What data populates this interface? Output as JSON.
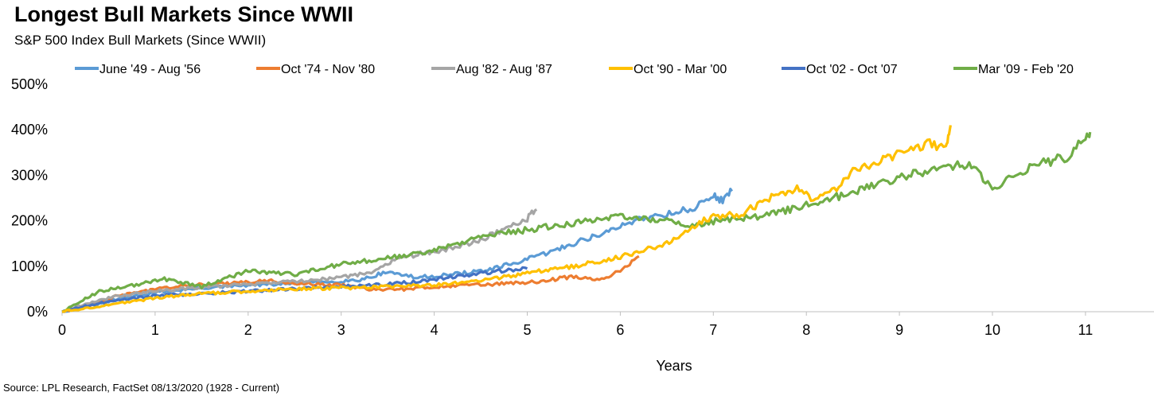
{
  "chart_data": {
    "type": "line",
    "title": "Longest Bull Markets Since WWII",
    "subtitle": "S&P 500 Index Bull Markets (Since WWII)",
    "xlabel": "Years",
    "ylabel": "",
    "source": "Source: LPL Research, FactSet 08/13/2020 (1928 - Current)",
    "xlim": [
      0,
      11.7
    ],
    "ylim": [
      0,
      500
    ],
    "x_ticks": [
      0,
      1,
      2,
      3,
      4,
      5,
      6,
      7,
      8,
      9,
      10,
      11
    ],
    "x_tick_labels": [
      "0",
      "1",
      "2",
      "3",
      "4",
      "5",
      "6",
      "7",
      "8",
      "9",
      "10",
      "11"
    ],
    "y_ticks": [
      0,
      100,
      200,
      300,
      400,
      500
    ],
    "y_tick_labels": [
      "0%",
      "100%",
      "200%",
      "300%",
      "400%",
      "500%"
    ],
    "grid": false,
    "legend_position": "top",
    "series": [
      {
        "name": "June '49 - Aug '56",
        "color": "#5B9BD5",
        "points": [
          [
            0,
            0
          ],
          [
            0.3,
            12
          ],
          [
            0.6,
            28
          ],
          [
            1,
            42
          ],
          [
            1.5,
            52
          ],
          [
            2,
            58
          ],
          [
            2.5,
            62
          ],
          [
            2.9,
            66
          ],
          [
            3.2,
            70
          ],
          [
            3.5,
            88
          ],
          [
            3.8,
            75
          ],
          [
            4.2,
            82
          ],
          [
            4.6,
            92
          ],
          [
            5,
            115
          ],
          [
            5.3,
            135
          ],
          [
            5.6,
            158
          ],
          [
            5.9,
            178
          ],
          [
            6.2,
            205
          ],
          [
            6.5,
            215
          ],
          [
            6.8,
            228
          ],
          [
            7,
            255
          ],
          [
            7.1,
            245
          ],
          [
            7.2,
            265
          ]
        ]
      },
      {
        "name": "Oct '74 - Nov '80",
        "color": "#ED7D31",
        "points": [
          [
            0,
            0
          ],
          [
            0.3,
            15
          ],
          [
            0.6,
            35
          ],
          [
            1,
            50
          ],
          [
            1.4,
            58
          ],
          [
            1.8,
            62
          ],
          [
            2.2,
            68
          ],
          [
            2.6,
            62
          ],
          [
            3,
            58
          ],
          [
            3.3,
            50
          ],
          [
            3.6,
            48
          ],
          [
            4,
            55
          ],
          [
            4.4,
            58
          ],
          [
            4.8,
            62
          ],
          [
            5.2,
            68
          ],
          [
            5.5,
            78
          ],
          [
            5.8,
            70
          ],
          [
            6,
            90
          ],
          [
            6.2,
            122
          ]
        ]
      },
      {
        "name": "Aug '82 - Aug '87",
        "color": "#A5A5A5",
        "points": [
          [
            0,
            0
          ],
          [
            0.3,
            20
          ],
          [
            0.6,
            35
          ],
          [
            1,
            45
          ],
          [
            1.4,
            52
          ],
          [
            1.8,
            58
          ],
          [
            2.2,
            62
          ],
          [
            2.6,
            68
          ],
          [
            3,
            75
          ],
          [
            3.3,
            85
          ],
          [
            3.6,
            115
          ],
          [
            3.9,
            130
          ],
          [
            4.2,
            140
          ],
          [
            4.5,
            158
          ],
          [
            4.8,
            185
          ],
          [
            5,
            205
          ],
          [
            5.1,
            225
          ]
        ]
      },
      {
        "name": "Oct '90 - Mar '00",
        "color": "#FFC000",
        "points": [
          [
            0,
            0
          ],
          [
            0.5,
            15
          ],
          [
            1,
            30
          ],
          [
            1.5,
            40
          ],
          [
            2,
            45
          ],
          [
            2.5,
            50
          ],
          [
            3,
            52
          ],
          [
            3.5,
            55
          ],
          [
            4,
            58
          ],
          [
            4.5,
            68
          ],
          [
            5,
            85
          ],
          [
            5.5,
            100
          ],
          [
            6,
            120
          ],
          [
            6.4,
            145
          ],
          [
            6.6,
            158
          ],
          [
            6.8,
            190
          ],
          [
            7,
            210
          ],
          [
            7.3,
            215
          ],
          [
            7.6,
            250
          ],
          [
            7.9,
            270
          ],
          [
            8.1,
            245
          ],
          [
            8.3,
            265
          ],
          [
            8.5,
            310
          ],
          [
            8.8,
            335
          ],
          [
            9.1,
            350
          ],
          [
            9.3,
            370
          ],
          [
            9.5,
            355
          ],
          [
            9.55,
            410
          ]
        ]
      },
      {
        "name": "Oct '02 - Oct '07",
        "color": "#4472C4",
        "points": [
          [
            0,
            0
          ],
          [
            0.3,
            15
          ],
          [
            0.6,
            25
          ],
          [
            1,
            35
          ],
          [
            1.5,
            40
          ],
          [
            2,
            45
          ],
          [
            2.5,
            50
          ],
          [
            3,
            55
          ],
          [
            3.5,
            60
          ],
          [
            4,
            70
          ],
          [
            4.5,
            85
          ],
          [
            5,
            95
          ]
        ]
      },
      {
        "name": "Mar '09 - Feb '20",
        "color": "#70AD47",
        "points": [
          [
            0,
            0
          ],
          [
            0.4,
            45
          ],
          [
            0.8,
            60
          ],
          [
            1.1,
            72
          ],
          [
            1.5,
            55
          ],
          [
            2,
            90
          ],
          [
            2.5,
            82
          ],
          [
            3,
            105
          ],
          [
            3.5,
            118
          ],
          [
            4,
            135
          ],
          [
            4.5,
            165
          ],
          [
            5,
            180
          ],
          [
            5.5,
            195
          ],
          [
            6,
            208
          ],
          [
            6.5,
            200
          ],
          [
            6.8,
            190
          ],
          [
            7.2,
            205
          ],
          [
            7.6,
            212
          ],
          [
            8,
            235
          ],
          [
            8.5,
            262
          ],
          [
            9,
            295
          ],
          [
            9.3,
            310
          ],
          [
            9.6,
            322
          ],
          [
            9.8,
            320
          ],
          [
            10,
            265
          ],
          [
            10.2,
            295
          ],
          [
            10.5,
            325
          ],
          [
            10.8,
            340
          ],
          [
            11,
            382
          ],
          [
            11.05,
            395
          ]
        ]
      }
    ]
  }
}
